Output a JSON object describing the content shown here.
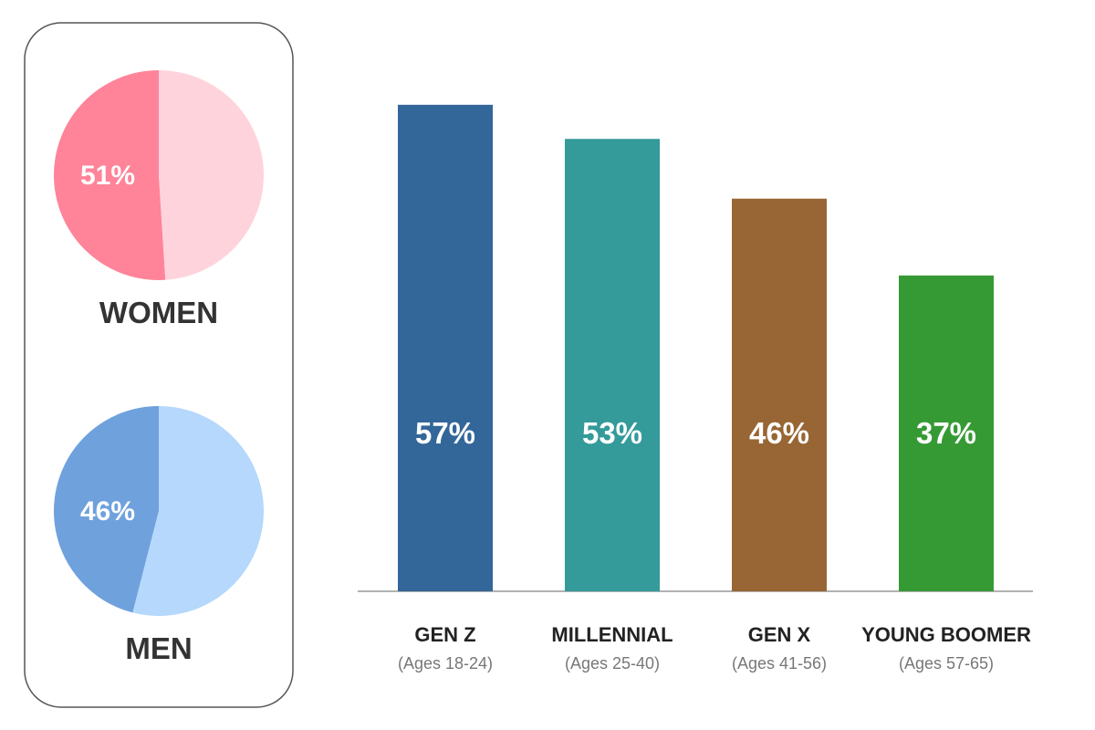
{
  "chart_data": [
    {
      "type": "pie",
      "caption": "WOMEN",
      "value_label": "51%",
      "slices": [
        {
          "value": 51,
          "color": "#ff8399"
        },
        {
          "value": 49,
          "color": "#ffd3dc"
        }
      ]
    },
    {
      "type": "pie",
      "caption": "MEN",
      "value_label": "46%",
      "slices": [
        {
          "value": 46,
          "color": "#6fa1dc"
        },
        {
          "value": 54,
          "color": "#b5d8fc"
        }
      ]
    },
    {
      "type": "bar",
      "categories": [
        "GEN Z",
        "MILLENNIAL",
        "GEN X",
        "YOUNG BOOMER"
      ],
      "subcategories": [
        "(Ages 18-24)",
        "(Ages 25-40)",
        "(Ages 41-56)",
        "(Ages 57-65)"
      ],
      "values": [
        57,
        53,
        46,
        37
      ],
      "value_labels": [
        "57%",
        "53%",
        "46%",
        "37%"
      ],
      "colors": [
        "#336699",
        "#349a9a",
        "#986534",
        "#369a34"
      ],
      "ylim": [
        0,
        65
      ],
      "grid": false,
      "legend": false
    }
  ]
}
